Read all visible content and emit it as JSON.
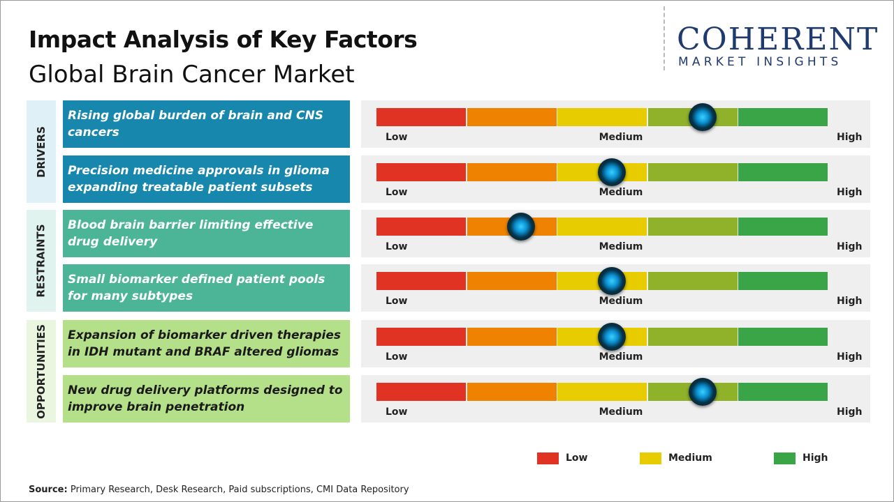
{
  "header": {
    "title": "Impact Analysis of Key Factors",
    "subtitle": "Global Brain Cancer Market"
  },
  "logo": {
    "name": "COHERENT",
    "tagline": "MARKET INSIGHTS"
  },
  "scale": {
    "low": "Low",
    "medium": "Medium",
    "high": "High",
    "range": [
      0,
      5
    ],
    "segment_colors": [
      "#e03323",
      "#ef8200",
      "#e6cc00",
      "#8fb22a",
      "#3aa547"
    ]
  },
  "groups": [
    {
      "label": "DRIVERS",
      "color": "#1787ad",
      "text_color": "#ffffff",
      "band_color": "#dff0f7",
      "factors": [
        {
          "text": "Rising global burden of brain and CNS cancers",
          "impact": 3.6
        },
        {
          "text": "Precision medicine approvals in glioma expanding treatable patient subsets",
          "impact": 2.6
        }
      ]
    },
    {
      "label": "RESTRAINTS",
      "color": "#4db597",
      "text_color": "#ffffff",
      "band_color": "#e0f3ee",
      "factors": [
        {
          "text": "Blood brain barrier limiting effective drug delivery",
          "impact": 1.6
        },
        {
          "text": "Small biomarker defined patient pools for many subtypes",
          "impact": 2.6
        }
      ]
    },
    {
      "label": "OPPORTUNITIES",
      "color": "#b5e08a",
      "text_color": "#1a1a1a",
      "band_color": "#eaf6e0",
      "factors": [
        {
          "text": "Expansion of biomarker driven therapies in IDH mutant and BRAF altered gliomas",
          "impact": 2.6
        },
        {
          "text": "New drug delivery platforms designed to improve brain penetration",
          "impact": 3.6
        }
      ]
    }
  ],
  "legend": [
    {
      "label": "Low",
      "color": "#e03323"
    },
    {
      "label": "Medium",
      "color": "#e6cc00"
    },
    {
      "label": "High",
      "color": "#3aa547"
    }
  ],
  "source": {
    "label": "Source:",
    "text": "Primary Research, Desk Research, Paid subscriptions, CMI Data Repository"
  }
}
